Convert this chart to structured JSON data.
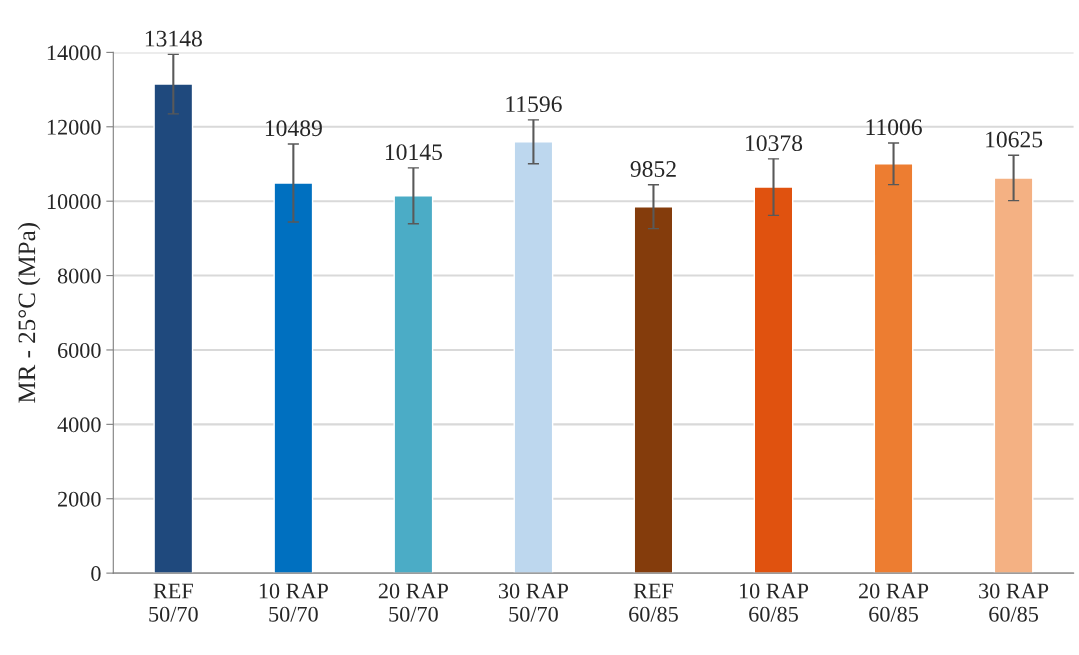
{
  "chart_data": {
    "type": "bar",
    "ylabel": "MR - 25°C (MPa)",
    "categories": [
      "REF\n50/70",
      "10 RAP\n50/70",
      "20 RAP\n50/70",
      "30 RAP\n50/70",
      "REF\n60/85",
      "10 RAP\n60/85",
      "20 RAP\n60/85",
      "30 RAP\n60/85"
    ],
    "values": [
      13148,
      10489,
      10145,
      11596,
      9852,
      10378,
      11006,
      10625
    ],
    "errors": [
      800,
      1050,
      750,
      590,
      590,
      760,
      560,
      610
    ],
    "colors": [
      "#1f497d",
      "#0070c0",
      "#4bacc6",
      "#bdd7ee",
      "#843c0c",
      "#e0520f",
      "#ed7d31",
      "#f4b183"
    ],
    "ylim": [
      0,
      14000
    ],
    "yticks": [
      0,
      2000,
      4000,
      6000,
      8000,
      10000,
      12000,
      14000
    ],
    "grid": "y",
    "data_labels": true
  }
}
